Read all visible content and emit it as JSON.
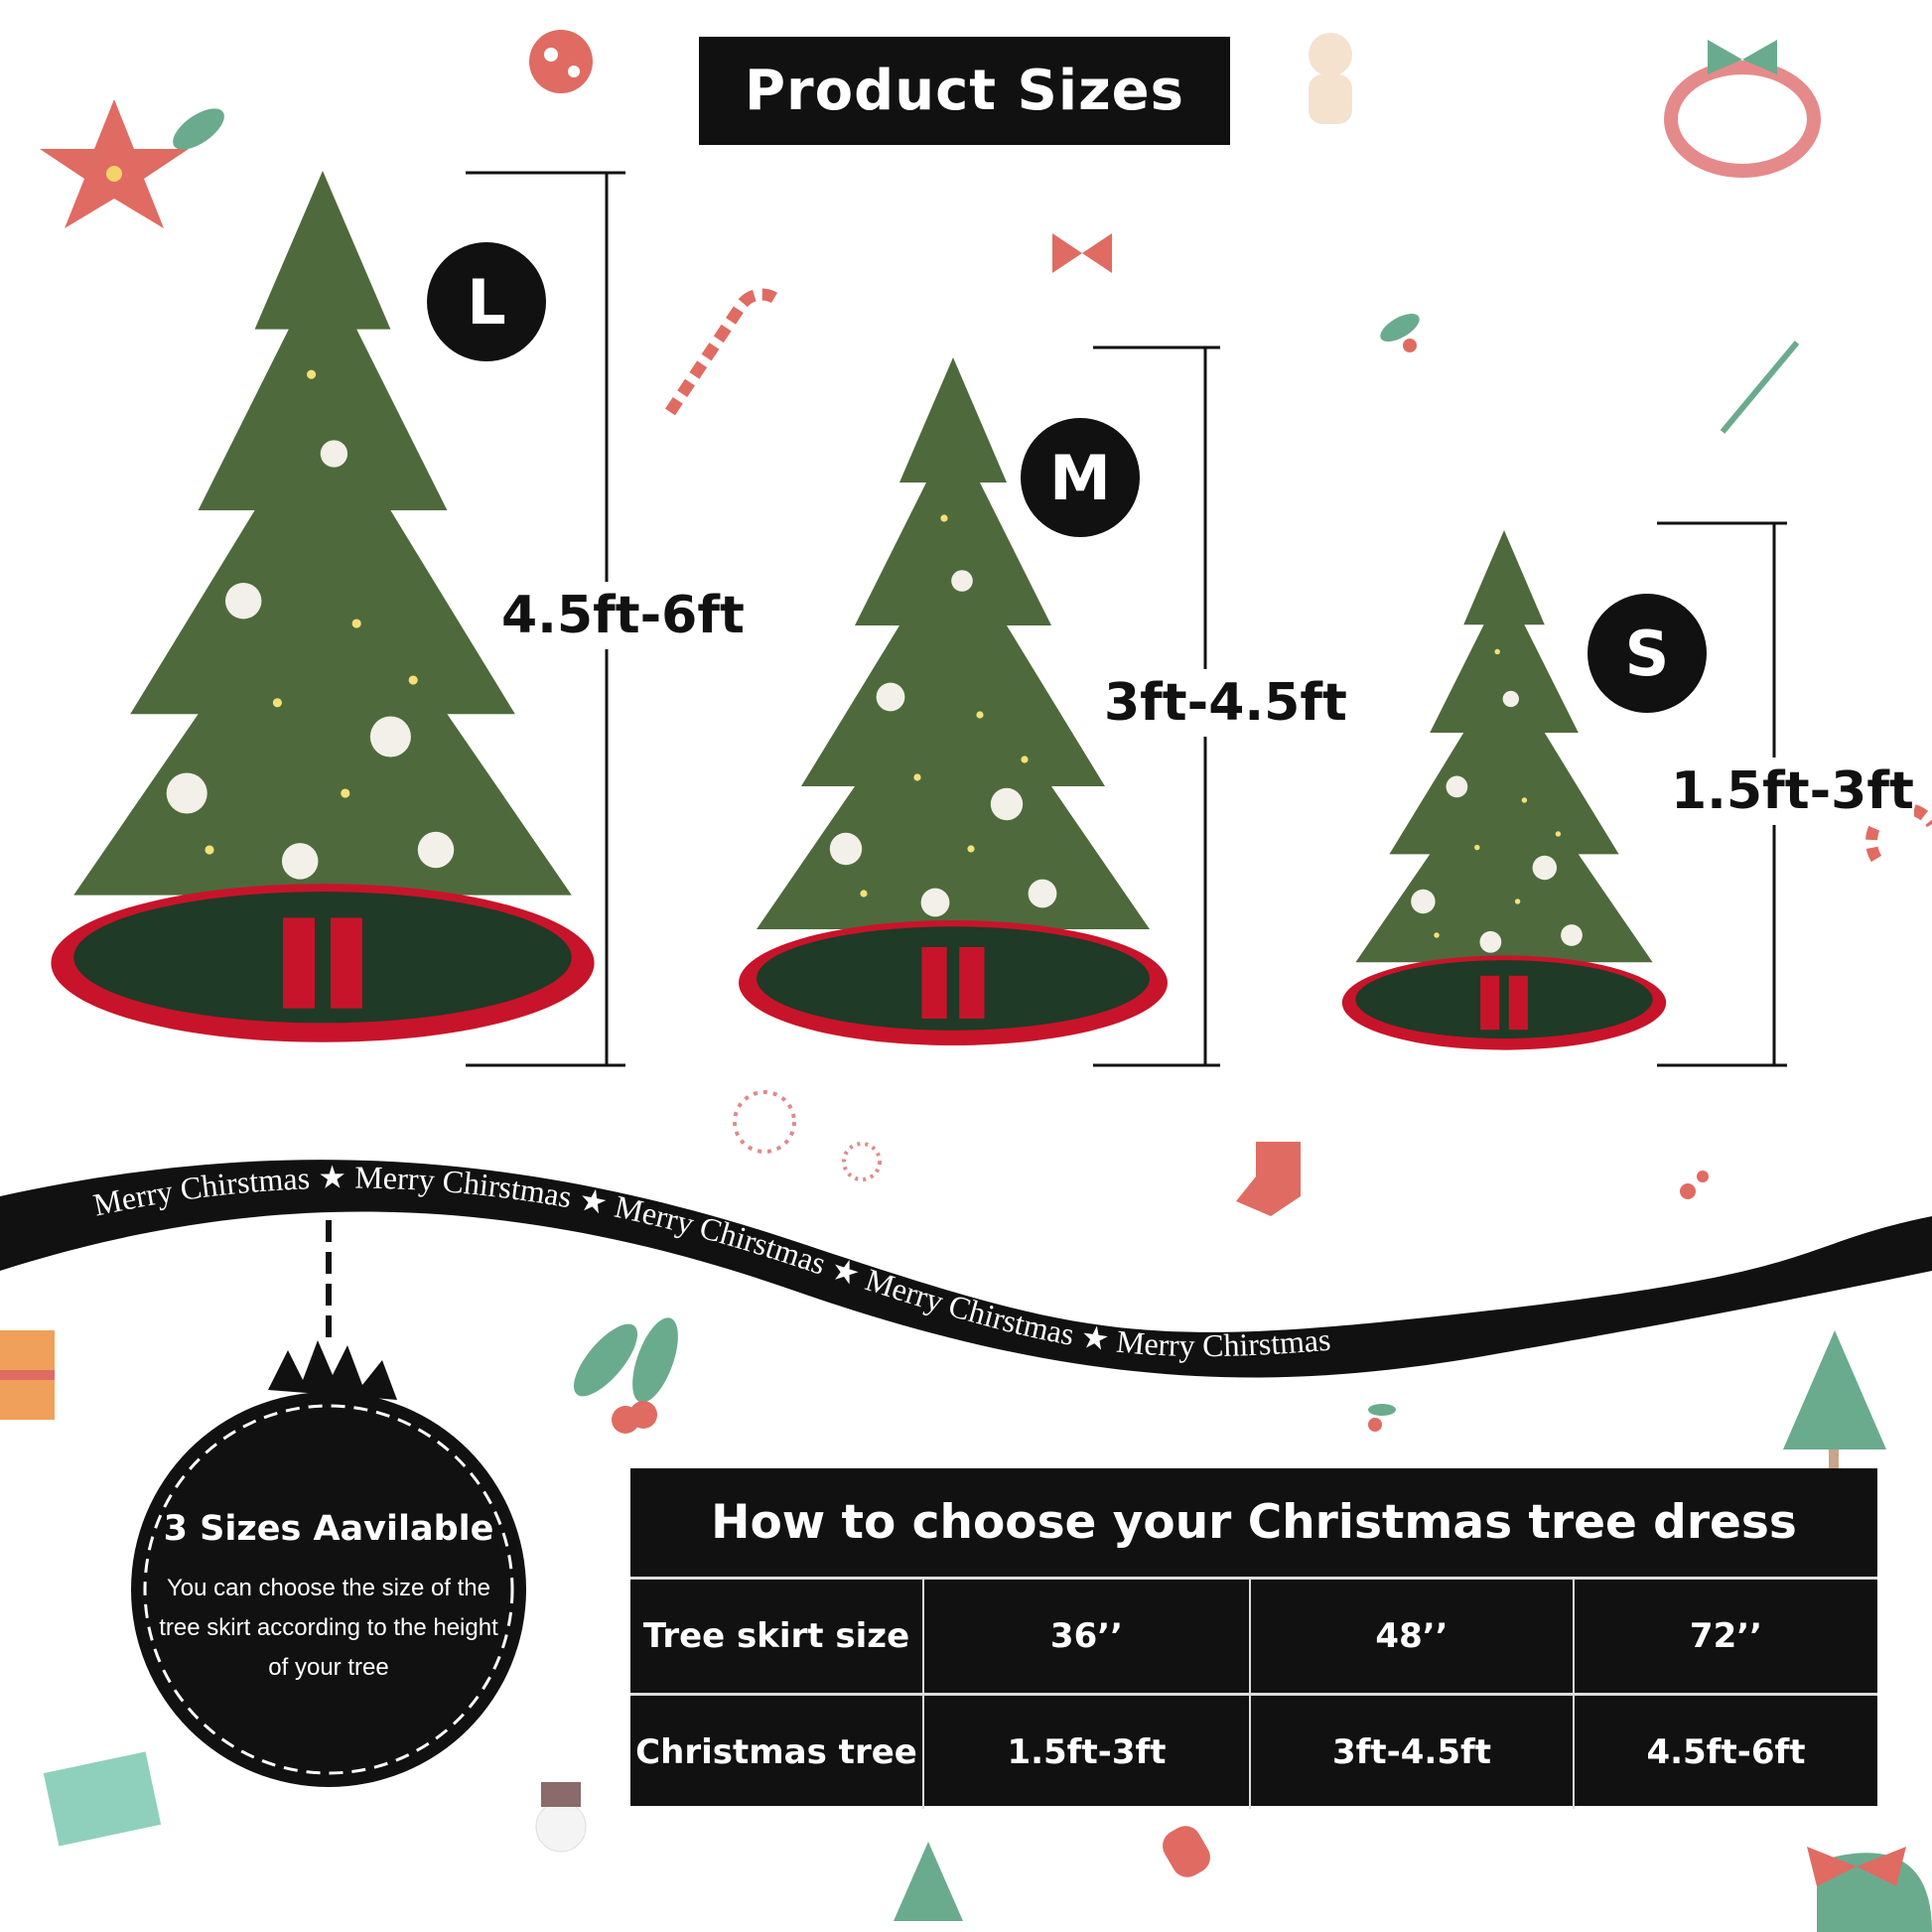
{
  "title": "Product Sizes",
  "sizes": [
    {
      "badge": "L",
      "height_label": "4.5ft-6ft"
    },
    {
      "badge": "M",
      "height_label": "3ft-4.5ft"
    },
    {
      "badge": "S",
      "height_label": "1.5ft-3ft"
    }
  ],
  "ribbon": {
    "text": "Merry Chirstmas"
  },
  "ornament": {
    "heading": "3 Sizes Aavilable",
    "body": "You can choose the size of the tree skirt according to the height of your tree"
  },
  "table": {
    "title": "How to choose your Christmas tree dress",
    "rows": [
      {
        "label": "Tree skirt size",
        "values": [
          "36’’",
          "48’’",
          "72’’"
        ]
      },
      {
        "label": "Christmas tree",
        "values": [
          "1.5ft-3ft",
          "3ft-4.5ft",
          "4.5ft-6ft"
        ]
      }
    ]
  },
  "colors": {
    "black": "#111111",
    "tree_green": "#4e6a3c",
    "skirt_green": "#1f3a26",
    "skirt_red": "#c8142a",
    "accent_red": "#e06060",
    "accent_mint": "#6aab8e"
  }
}
